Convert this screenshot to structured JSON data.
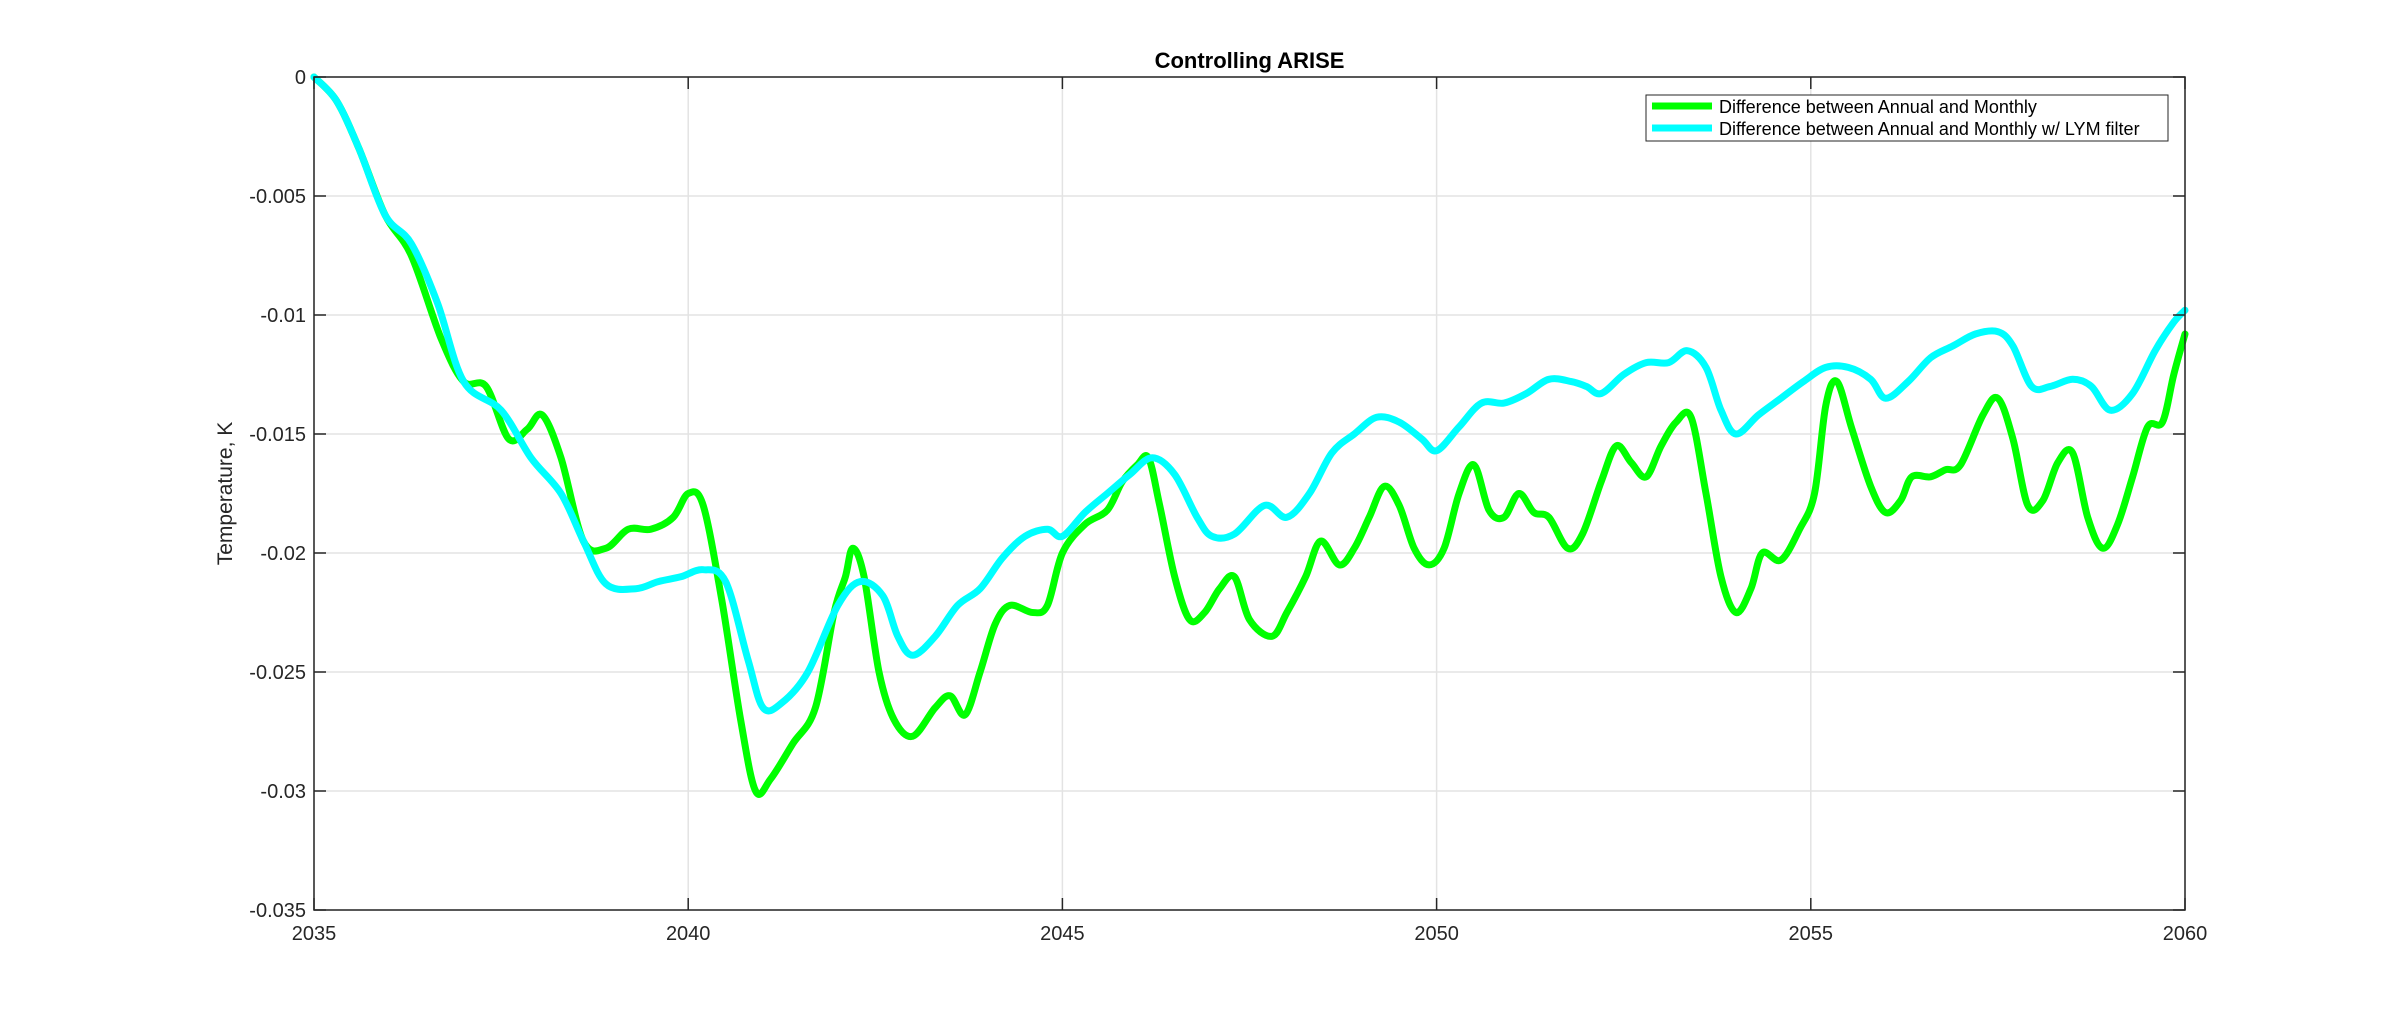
{
  "chart_data": {
    "type": "line",
    "title": "Controlling ARISE",
    "xlabel": "",
    "ylabel": "Temperature, K",
    "xlim": [
      2035,
      2060
    ],
    "ylim": [
      -0.035,
      0
    ],
    "xticks": [
      "2035",
      "2040",
      "2045",
      "2050",
      "2055",
      "2060"
    ],
    "yticks": [
      "0",
      "-0.005",
      "-0.01",
      "-0.015",
      "-0.02",
      "-0.025",
      "-0.03",
      "-0.035"
    ],
    "grid": true,
    "legend_position": "top-right",
    "series": [
      {
        "name": "Difference between Annual and Monthly",
        "color": "#00FF00",
        "points": [
          [
            2035.0,
            0.0
          ],
          [
            2035.3,
            -0.001
          ],
          [
            2035.6,
            -0.003
          ],
          [
            2035.95,
            -0.0058
          ],
          [
            2036.3,
            -0.0075
          ],
          [
            2036.7,
            -0.011
          ],
          [
            2037.0,
            -0.0128
          ],
          [
            2037.3,
            -0.013
          ],
          [
            2037.6,
            -0.0152
          ],
          [
            2037.85,
            -0.0148
          ],
          [
            2038.05,
            -0.0142
          ],
          [
            2038.3,
            -0.016
          ],
          [
            2038.6,
            -0.0195
          ],
          [
            2038.9,
            -0.0198
          ],
          [
            2039.2,
            -0.019
          ],
          [
            2039.5,
            -0.019
          ],
          [
            2039.8,
            -0.0185
          ],
          [
            2040.0,
            -0.0175
          ],
          [
            2040.2,
            -0.018
          ],
          [
            2040.45,
            -0.022
          ],
          [
            2040.7,
            -0.027
          ],
          [
            2040.9,
            -0.03
          ],
          [
            2041.1,
            -0.0295
          ],
          [
            2041.4,
            -0.028
          ],
          [
            2041.7,
            -0.0265
          ],
          [
            2041.95,
            -0.0225
          ],
          [
            2042.1,
            -0.021
          ],
          [
            2042.2,
            -0.0198
          ],
          [
            2042.35,
            -0.021
          ],
          [
            2042.55,
            -0.025
          ],
          [
            2042.75,
            -0.027
          ],
          [
            2043.0,
            -0.0277
          ],
          [
            2043.3,
            -0.0265
          ],
          [
            2043.5,
            -0.026
          ],
          [
            2043.7,
            -0.0268
          ],
          [
            2043.9,
            -0.025
          ],
          [
            2044.1,
            -0.023
          ],
          [
            2044.3,
            -0.0222
          ],
          [
            2044.6,
            -0.0225
          ],
          [
            2044.8,
            -0.0222
          ],
          [
            2045.0,
            -0.02
          ],
          [
            2045.3,
            -0.0188
          ],
          [
            2045.6,
            -0.0182
          ],
          [
            2045.8,
            -0.017
          ],
          [
            2046.0,
            -0.0163
          ],
          [
            2046.15,
            -0.016
          ],
          [
            2046.3,
            -0.018
          ],
          [
            2046.5,
            -0.021
          ],
          [
            2046.7,
            -0.0228
          ],
          [
            2046.9,
            -0.0225
          ],
          [
            2047.1,
            -0.0215
          ],
          [
            2047.3,
            -0.021
          ],
          [
            2047.5,
            -0.0228
          ],
          [
            2047.8,
            -0.0235
          ],
          [
            2048.0,
            -0.0225
          ],
          [
            2048.25,
            -0.021
          ],
          [
            2048.45,
            -0.0195
          ],
          [
            2048.7,
            -0.0205
          ],
          [
            2048.9,
            -0.0198
          ],
          [
            2049.1,
            -0.0185
          ],
          [
            2049.3,
            -0.0172
          ],
          [
            2049.5,
            -0.018
          ],
          [
            2049.7,
            -0.0198
          ],
          [
            2049.9,
            -0.0205
          ],
          [
            2050.1,
            -0.0198
          ],
          [
            2050.3,
            -0.0175
          ],
          [
            2050.5,
            -0.0163
          ],
          [
            2050.7,
            -0.0182
          ],
          [
            2050.9,
            -0.0185
          ],
          [
            2051.1,
            -0.0175
          ],
          [
            2051.3,
            -0.0183
          ],
          [
            2051.5,
            -0.0185
          ],
          [
            2051.75,
            -0.0198
          ],
          [
            2051.95,
            -0.0192
          ],
          [
            2052.2,
            -0.017
          ],
          [
            2052.4,
            -0.0155
          ],
          [
            2052.6,
            -0.0162
          ],
          [
            2052.8,
            -0.0168
          ],
          [
            2053.0,
            -0.0155
          ],
          [
            2053.2,
            -0.0145
          ],
          [
            2053.4,
            -0.0143
          ],
          [
            2053.6,
            -0.0175
          ],
          [
            2053.8,
            -0.021
          ],
          [
            2054.0,
            -0.0225
          ],
          [
            2054.2,
            -0.0215
          ],
          [
            2054.35,
            -0.02
          ],
          [
            2054.6,
            -0.0203
          ],
          [
            2054.85,
            -0.019
          ],
          [
            2055.05,
            -0.0175
          ],
          [
            2055.2,
            -0.0138
          ],
          [
            2055.35,
            -0.0128
          ],
          [
            2055.55,
            -0.0148
          ],
          [
            2055.8,
            -0.0172
          ],
          [
            2056.0,
            -0.0183
          ],
          [
            2056.2,
            -0.0178
          ],
          [
            2056.35,
            -0.0168
          ],
          [
            2056.6,
            -0.0168
          ],
          [
            2056.8,
            -0.0165
          ],
          [
            2057.0,
            -0.0163
          ],
          [
            2057.3,
            -0.0142
          ],
          [
            2057.5,
            -0.0135
          ],
          [
            2057.7,
            -0.0152
          ],
          [
            2057.9,
            -0.018
          ],
          [
            2058.1,
            -0.0178
          ],
          [
            2058.3,
            -0.0162
          ],
          [
            2058.5,
            -0.0158
          ],
          [
            2058.7,
            -0.0185
          ],
          [
            2058.9,
            -0.0198
          ],
          [
            2059.1,
            -0.0188
          ],
          [
            2059.3,
            -0.0168
          ],
          [
            2059.5,
            -0.0147
          ],
          [
            2059.7,
            -0.0145
          ],
          [
            2059.85,
            -0.0125
          ],
          [
            2060.0,
            -0.0108
          ]
        ]
      },
      {
        "name": "Difference between Annual and Monthly w/ LYM filter",
        "color": "#00FFFF",
        "points": [
          [
            2035.0,
            0.0
          ],
          [
            2035.3,
            -0.001
          ],
          [
            2035.6,
            -0.003
          ],
          [
            2035.95,
            -0.0058
          ],
          [
            2036.3,
            -0.007
          ],
          [
            2036.65,
            -0.0095
          ],
          [
            2037.0,
            -0.0128
          ],
          [
            2037.5,
            -0.014
          ],
          [
            2037.9,
            -0.016
          ],
          [
            2038.3,
            -0.0175
          ],
          [
            2038.6,
            -0.0195
          ],
          [
            2038.9,
            -0.0213
          ],
          [
            2039.3,
            -0.0215
          ],
          [
            2039.6,
            -0.0212
          ],
          [
            2039.9,
            -0.021
          ],
          [
            2040.2,
            -0.0207
          ],
          [
            2040.5,
            -0.0212
          ],
          [
            2040.8,
            -0.0245
          ],
          [
            2041.0,
            -0.0265
          ],
          [
            2041.25,
            -0.0263
          ],
          [
            2041.6,
            -0.025
          ],
          [
            2042.0,
            -0.0222
          ],
          [
            2042.3,
            -0.0212
          ],
          [
            2042.6,
            -0.0218
          ],
          [
            2042.8,
            -0.0235
          ],
          [
            2043.0,
            -0.0243
          ],
          [
            2043.3,
            -0.0235
          ],
          [
            2043.6,
            -0.0222
          ],
          [
            2043.9,
            -0.0215
          ],
          [
            2044.2,
            -0.0202
          ],
          [
            2044.5,
            -0.0193
          ],
          [
            2044.8,
            -0.019
          ],
          [
            2045.0,
            -0.0193
          ],
          [
            2045.3,
            -0.0183
          ],
          [
            2045.6,
            -0.0175
          ],
          [
            2045.9,
            -0.0167
          ],
          [
            2046.2,
            -0.016
          ],
          [
            2046.5,
            -0.0167
          ],
          [
            2046.8,
            -0.0185
          ],
          [
            2047.0,
            -0.0193
          ],
          [
            2047.3,
            -0.0192
          ],
          [
            2047.7,
            -0.018
          ],
          [
            2048.0,
            -0.0185
          ],
          [
            2048.3,
            -0.0175
          ],
          [
            2048.6,
            -0.0158
          ],
          [
            2048.9,
            -0.015
          ],
          [
            2049.2,
            -0.0143
          ],
          [
            2049.5,
            -0.0145
          ],
          [
            2049.8,
            -0.0152
          ],
          [
            2050.0,
            -0.0157
          ],
          [
            2050.3,
            -0.0147
          ],
          [
            2050.6,
            -0.0137
          ],
          [
            2050.9,
            -0.0137
          ],
          [
            2051.2,
            -0.0133
          ],
          [
            2051.5,
            -0.0127
          ],
          [
            2051.8,
            -0.0128
          ],
          [
            2052.0,
            -0.013
          ],
          [
            2052.2,
            -0.0133
          ],
          [
            2052.5,
            -0.0125
          ],
          [
            2052.8,
            -0.012
          ],
          [
            2053.1,
            -0.012
          ],
          [
            2053.35,
            -0.0115
          ],
          [
            2053.6,
            -0.0122
          ],
          [
            2053.8,
            -0.014
          ],
          [
            2054.0,
            -0.015
          ],
          [
            2054.3,
            -0.0142
          ],
          [
            2054.6,
            -0.0135
          ],
          [
            2054.9,
            -0.0128
          ],
          [
            2055.2,
            -0.0122
          ],
          [
            2055.5,
            -0.0122
          ],
          [
            2055.8,
            -0.0127
          ],
          [
            2056.0,
            -0.0135
          ],
          [
            2056.3,
            -0.0128
          ],
          [
            2056.6,
            -0.0118
          ],
          [
            2056.9,
            -0.0113
          ],
          [
            2057.2,
            -0.0108
          ],
          [
            2057.5,
            -0.0107
          ],
          [
            2057.7,
            -0.0113
          ],
          [
            2057.95,
            -0.013
          ],
          [
            2058.2,
            -0.013
          ],
          [
            2058.5,
            -0.0127
          ],
          [
            2058.75,
            -0.013
          ],
          [
            2059.0,
            -0.014
          ],
          [
            2059.3,
            -0.0133
          ],
          [
            2059.6,
            -0.0115
          ],
          [
            2059.85,
            -0.0103
          ],
          [
            2060.0,
            -0.0098
          ]
        ]
      }
    ]
  }
}
